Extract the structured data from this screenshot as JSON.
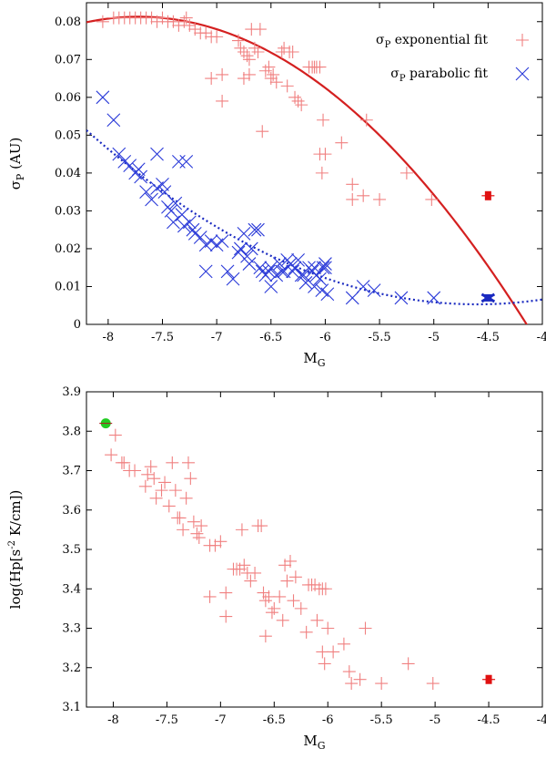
{
  "colors": {
    "exponential": "#f08080",
    "exponential_curve": "#d42020",
    "parabolic": "#2a3ad8",
    "parabolic_curve": "#1a2ac0",
    "highlight_red": "#e01010",
    "highlight_green": "#22cc22"
  },
  "chart_data": [
    {
      "type": "scatter",
      "title": "",
      "xlabel": "M",
      "xlabel_sub": "G",
      "ylabel_prefix": "σ",
      "ylabel_sub": "P",
      "ylabel_suffix": " (AU)",
      "xlim": [
        -8.2,
        -4
      ],
      "ylim": [
        0,
        0.085
      ],
      "xticks": [
        -8,
        -7.5,
        -7,
        -6.5,
        -6,
        -5.5,
        -5,
        -4.5,
        -4
      ],
      "xtick_labels": [
        "-8",
        "-7.5",
        "-7",
        "-6.5",
        "-6",
        "-5.5",
        "-5",
        "-4.5",
        "-4"
      ],
      "yticks": [
        0,
        0.01,
        0.02,
        0.03,
        0.04,
        0.05,
        0.06,
        0.07,
        0.08
      ],
      "ytick_labels": [
        "0",
        "0.01",
        "0.02",
        "0.03",
        "0.04",
        "0.05",
        "0.06",
        "0.07",
        "0.08"
      ],
      "legend": [
        {
          "sigma": "σ",
          "sub": "P",
          "text": " exponential fit",
          "marker": "plus"
        },
        {
          "sigma": "σ",
          "sub": "P",
          "text": " parabolic fit",
          "marker": "cross"
        }
      ],
      "series": [
        {
          "name": "exponential fit",
          "marker": "plus",
          "points": [
            [
              -8.05,
              0.08
            ],
            [
              -7.95,
              0.081
            ],
            [
              -7.9,
              0.081
            ],
            [
              -7.85,
              0.081
            ],
            [
              -7.8,
              0.081
            ],
            [
              -7.75,
              0.081
            ],
            [
              -7.7,
              0.081
            ],
            [
              -7.65,
              0.081
            ],
            [
              -7.6,
              0.081
            ],
            [
              -7.55,
              0.08
            ],
            [
              -7.5,
              0.081
            ],
            [
              -7.45,
              0.08
            ],
            [
              -7.4,
              0.08
            ],
            [
              -7.35,
              0.079
            ],
            [
              -7.3,
              0.08
            ],
            [
              -7.28,
              0.081
            ],
            [
              -7.25,
              0.079
            ],
            [
              -7.2,
              0.078
            ],
            [
              -7.15,
              0.077
            ],
            [
              -7.1,
              0.077
            ],
            [
              -7.05,
              0.076
            ],
            [
              -7.0,
              0.076
            ],
            [
              -6.8,
              0.075
            ],
            [
              -6.78,
              0.073
            ],
            [
              -6.75,
              0.072
            ],
            [
              -6.72,
              0.071
            ],
            [
              -6.7,
              0.07
            ],
            [
              -6.68,
              0.078
            ],
            [
              -6.65,
              0.073
            ],
            [
              -6.62,
              0.072
            ],
            [
              -6.6,
              0.078
            ],
            [
              -6.55,
              0.067
            ],
            [
              -6.52,
              0.068
            ],
            [
              -6.5,
              0.065
            ],
            [
              -6.48,
              0.066
            ],
            [
              -6.45,
              0.064
            ],
            [
              -6.4,
              0.072
            ],
            [
              -6.38,
              0.073
            ],
            [
              -6.35,
              0.063
            ],
            [
              -6.33,
              0.072
            ],
            [
              -6.3,
              0.072
            ],
            [
              -6.28,
              0.06
            ],
            [
              -6.25,
              0.059
            ],
            [
              -6.22,
              0.058
            ],
            [
              -6.15,
              0.068
            ],
            [
              -6.12,
              0.068
            ],
            [
              -6.1,
              0.068
            ],
            [
              -6.08,
              0.068
            ],
            [
              -6.05,
              0.068
            ],
            [
              -6.02,
              0.054
            ],
            [
              -6.0,
              0.045
            ],
            [
              -6.05,
              0.045
            ],
            [
              -6.03,
              0.04
            ],
            [
              -6.75,
              0.065
            ],
            [
              -6.7,
              0.066
            ],
            [
              -7.05,
              0.065
            ],
            [
              -6.95,
              0.066
            ],
            [
              -6.95,
              0.059
            ],
            [
              -6.58,
              0.051
            ],
            [
              -5.85,
              0.048
            ],
            [
              -5.75,
              0.037
            ],
            [
              -5.75,
              0.033
            ],
            [
              -5.65,
              0.034
            ],
            [
              -5.62,
              0.054
            ],
            [
              -5.5,
              0.033
            ],
            [
              -5.25,
              0.04
            ],
            [
              -5.02,
              0.033
            ]
          ]
        },
        {
          "name": "parabolic fit",
          "marker": "cross",
          "points": [
            [
              -8.05,
              0.06
            ],
            [
              -7.95,
              0.054
            ],
            [
              -7.85,
              0.043
            ],
            [
              -7.8,
              0.042
            ],
            [
              -7.75,
              0.04
            ],
            [
              -7.72,
              0.041
            ],
            [
              -7.7,
              0.039
            ],
            [
              -7.65,
              0.035
            ],
            [
              -7.6,
              0.033
            ],
            [
              -7.55,
              0.036
            ],
            [
              -7.5,
              0.037
            ],
            [
              -7.48,
              0.035
            ],
            [
              -7.45,
              0.031
            ],
            [
              -7.42,
              0.03
            ],
            [
              -7.4,
              0.027
            ],
            [
              -7.38,
              0.032
            ],
            [
              -7.35,
              0.043
            ],
            [
              -7.32,
              0.029
            ],
            [
              -7.3,
              0.026
            ],
            [
              -7.28,
              0.043
            ],
            [
              -7.25,
              0.027
            ],
            [
              -7.22,
              0.025
            ],
            [
              -7.2,
              0.024
            ],
            [
              -7.15,
              0.023
            ],
            [
              -7.1,
              0.021
            ],
            [
              -7.05,
              0.022
            ],
            [
              -7.0,
              0.021
            ],
            [
              -6.95,
              0.022
            ],
            [
              -6.9,
              0.014
            ],
            [
              -6.85,
              0.012
            ],
            [
              -6.8,
              0.019
            ],
            [
              -6.78,
              0.02
            ],
            [
              -6.75,
              0.024
            ],
            [
              -6.72,
              0.018
            ],
            [
              -6.7,
              0.016
            ],
            [
              -6.68,
              0.02
            ],
            [
              -6.65,
              0.025
            ],
            [
              -6.62,
              0.025
            ],
            [
              -6.6,
              0.015
            ],
            [
              -6.58,
              0.014
            ],
            [
              -6.55,
              0.013
            ],
            [
              -6.52,
              0.014
            ],
            [
              -6.5,
              0.01
            ],
            [
              -6.45,
              0.013
            ],
            [
              -6.42,
              0.016
            ],
            [
              -6.4,
              0.014
            ],
            [
              -6.38,
              0.014
            ],
            [
              -6.35,
              0.017
            ],
            [
              -6.32,
              0.016
            ],
            [
              -6.3,
              0.014
            ],
            [
              -6.28,
              0.015
            ],
            [
              -6.25,
              0.017
            ],
            [
              -6.22,
              0.013
            ],
            [
              -6.2,
              0.013
            ],
            [
              -6.18,
              0.011
            ],
            [
              -6.15,
              0.015
            ],
            [
              -6.12,
              0.014
            ],
            [
              -6.1,
              0.015
            ],
            [
              -6.08,
              0.013
            ],
            [
              -6.05,
              0.012
            ],
            [
              -6.02,
              0.015
            ],
            [
              -6.0,
              0.016
            ],
            [
              -5.98,
              0.008
            ],
            [
              -7.55,
              0.045
            ],
            [
              -7.9,
              0.045
            ],
            [
              -7.1,
              0.014
            ],
            [
              -6.5,
              0.015
            ],
            [
              -6.0,
              0.015
            ],
            [
              -5.75,
              0.007
            ],
            [
              -5.65,
              0.01
            ],
            [
              -5.55,
              0.009
            ],
            [
              -5.3,
              0.007
            ],
            [
              -5.0,
              0.007
            ],
            [
              -6.1,
              0.01
            ],
            [
              -6.03,
              0.009
            ]
          ]
        }
      ],
      "highlights": [
        {
          "name": "exponential-highlight",
          "x": -4.5,
          "y": 0.034,
          "marker": "square-plus"
        },
        {
          "name": "parabolic-highlight",
          "x": -4.5,
          "y": 0.007,
          "marker": "bold-cross"
        }
      ],
      "curves": [
        {
          "name": "exponential-fit-curve",
          "style": "solid",
          "kind": "parabola",
          "vertex_x": -7.72,
          "vertex_y": 0.0813,
          "a": -0.00636,
          "from": -8.2,
          "to": -4.1
        },
        {
          "name": "parabolic-fit-curve",
          "style": "dotted",
          "kind": "parabola",
          "vertex_x": -4.6,
          "vertex_y": 0.0053,
          "a": 0.00355,
          "from": -8.2,
          "to": -4.0
        }
      ]
    },
    {
      "type": "scatter",
      "title": "",
      "xlabel": "M",
      "xlabel_sub": "G",
      "ylabel_parts": [
        "log(Hp[s",
        "-2",
        " K/cm])"
      ],
      "xlim": [
        -8.25,
        -4
      ],
      "ylim": [
        3.1,
        3.9
      ],
      "xticks": [
        -8,
        -7.5,
        -7,
        -6.5,
        -6,
        -5.5,
        -5,
        -4.5,
        -4
      ],
      "xtick_labels": [
        "-8",
        "-7.5",
        "-7",
        "-6.5",
        "-6",
        "-5.5",
        "-5",
        "-4.5",
        "-4"
      ],
      "yticks": [
        3.1,
        3.2,
        3.3,
        3.4,
        3.5,
        3.6,
        3.7,
        3.8,
        3.9
      ],
      "ytick_labels": [
        "3.1",
        "3.2",
        "3.3",
        "3.4",
        "3.5",
        "3.6",
        "3.7",
        "3.8",
        "3.9"
      ],
      "series": [
        {
          "name": "log Hp",
          "marker": "plus",
          "points": [
            [
              -7.98,
              3.79
            ],
            [
              -8.02,
              3.74
            ],
            [
              -7.92,
              3.72
            ],
            [
              -7.9,
              3.72
            ],
            [
              -7.85,
              3.7
            ],
            [
              -7.8,
              3.7
            ],
            [
              -7.7,
              3.66
            ],
            [
              -7.68,
              3.69
            ],
            [
              -7.65,
              3.71
            ],
            [
              -7.62,
              3.68
            ],
            [
              -7.6,
              3.63
            ],
            [
              -7.55,
              3.65
            ],
            [
              -7.52,
              3.67
            ],
            [
              -7.48,
              3.61
            ],
            [
              -7.45,
              3.72
            ],
            [
              -7.42,
              3.65
            ],
            [
              -7.4,
              3.58
            ],
            [
              -7.38,
              3.58
            ],
            [
              -7.35,
              3.55
            ],
            [
              -7.32,
              3.63
            ],
            [
              -7.3,
              3.72
            ],
            [
              -7.28,
              3.68
            ],
            [
              -7.25,
              3.57
            ],
            [
              -7.22,
              3.54
            ],
            [
              -7.2,
              3.53
            ],
            [
              -7.18,
              3.56
            ],
            [
              -7.1,
              3.51
            ],
            [
              -7.05,
              3.51
            ],
            [
              -7.0,
              3.52
            ],
            [
              -6.95,
              3.39
            ],
            [
              -6.95,
              3.33
            ],
            [
              -6.88,
              3.45
            ],
            [
              -6.85,
              3.45
            ],
            [
              -6.82,
              3.45
            ],
            [
              -6.8,
              3.55
            ],
            [
              -6.78,
              3.46
            ],
            [
              -6.75,
              3.44
            ],
            [
              -6.72,
              3.42
            ],
            [
              -6.68,
              3.44
            ],
            [
              -6.65,
              3.56
            ],
            [
              -6.62,
              3.56
            ],
            [
              -6.6,
              3.39
            ],
            [
              -6.58,
              3.37
            ],
            [
              -6.55,
              3.38
            ],
            [
              -6.52,
              3.34
            ],
            [
              -6.5,
              3.35
            ],
            [
              -6.45,
              3.38
            ],
            [
              -6.42,
              3.32
            ],
            [
              -6.4,
              3.46
            ],
            [
              -6.38,
              3.42
            ],
            [
              -6.35,
              3.47
            ],
            [
              -6.32,
              3.37
            ],
            [
              -6.3,
              3.43
            ],
            [
              -6.25,
              3.35
            ],
            [
              -6.2,
              3.29
            ],
            [
              -6.18,
              3.41
            ],
            [
              -6.15,
              3.41
            ],
            [
              -6.12,
              3.41
            ],
            [
              -6.1,
              3.32
            ],
            [
              -6.08,
              3.4
            ],
            [
              -6.05,
              3.4
            ],
            [
              -6.02,
              3.4
            ],
            [
              -6.0,
              3.3
            ],
            [
              -6.05,
              3.24
            ],
            [
              -6.03,
              3.21
            ],
            [
              -5.95,
              3.24
            ],
            [
              -5.85,
              3.26
            ],
            [
              -5.8,
              3.19
            ],
            [
              -5.78,
              3.16
            ],
            [
              -5.7,
              3.17
            ],
            [
              -5.65,
              3.3
            ],
            [
              -5.5,
              3.16
            ],
            [
              -5.25,
              3.21
            ],
            [
              -5.02,
              3.16
            ],
            [
              -7.1,
              3.38
            ],
            [
              -6.58,
              3.28
            ]
          ]
        }
      ],
      "highlights": [
        {
          "name": "red-highlight",
          "x": -4.5,
          "y": 3.17,
          "marker": "square-plus"
        },
        {
          "name": "green-highlight",
          "x": -8.07,
          "y": 3.82,
          "marker": "circle-plus"
        }
      ]
    }
  ]
}
